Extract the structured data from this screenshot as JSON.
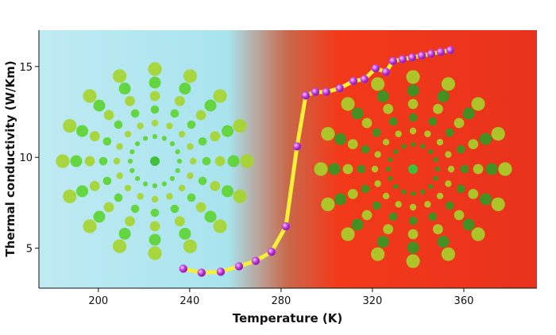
{
  "chart_data": {
    "type": "scatter",
    "x_label": "Temperature (K)",
    "y_label": "Thermal conductivity (W/Km)",
    "xlim": [
      174,
      392
    ],
    "xticks": [
      200,
      240,
      280,
      320,
      360
    ],
    "ylim": [
      2.8,
      17
    ],
    "yticks": [
      5,
      10,
      15
    ],
    "line_color": "#f5ef3a",
    "marker_color": "#c23cdc",
    "x": [
      237.2,
      245.2,
      253.6,
      261.6,
      268.9,
      275.8,
      282.1,
      287.0,
      290.8,
      295.0,
      299.8,
      305.7,
      311.7,
      316.5,
      321.4,
      325.9,
      329.0,
      333.2,
      337.4,
      341.6,
      345.7,
      349.9,
      354.1
    ],
    "values": [
      3.87,
      3.65,
      3.7,
      4.0,
      4.3,
      4.8,
      6.2,
      10.6,
      13.4,
      13.6,
      13.6,
      13.8,
      14.2,
      14.3,
      14.9,
      14.7,
      15.3,
      15.4,
      15.5,
      15.6,
      15.7,
      15.8,
      15.9
    ]
  }
}
